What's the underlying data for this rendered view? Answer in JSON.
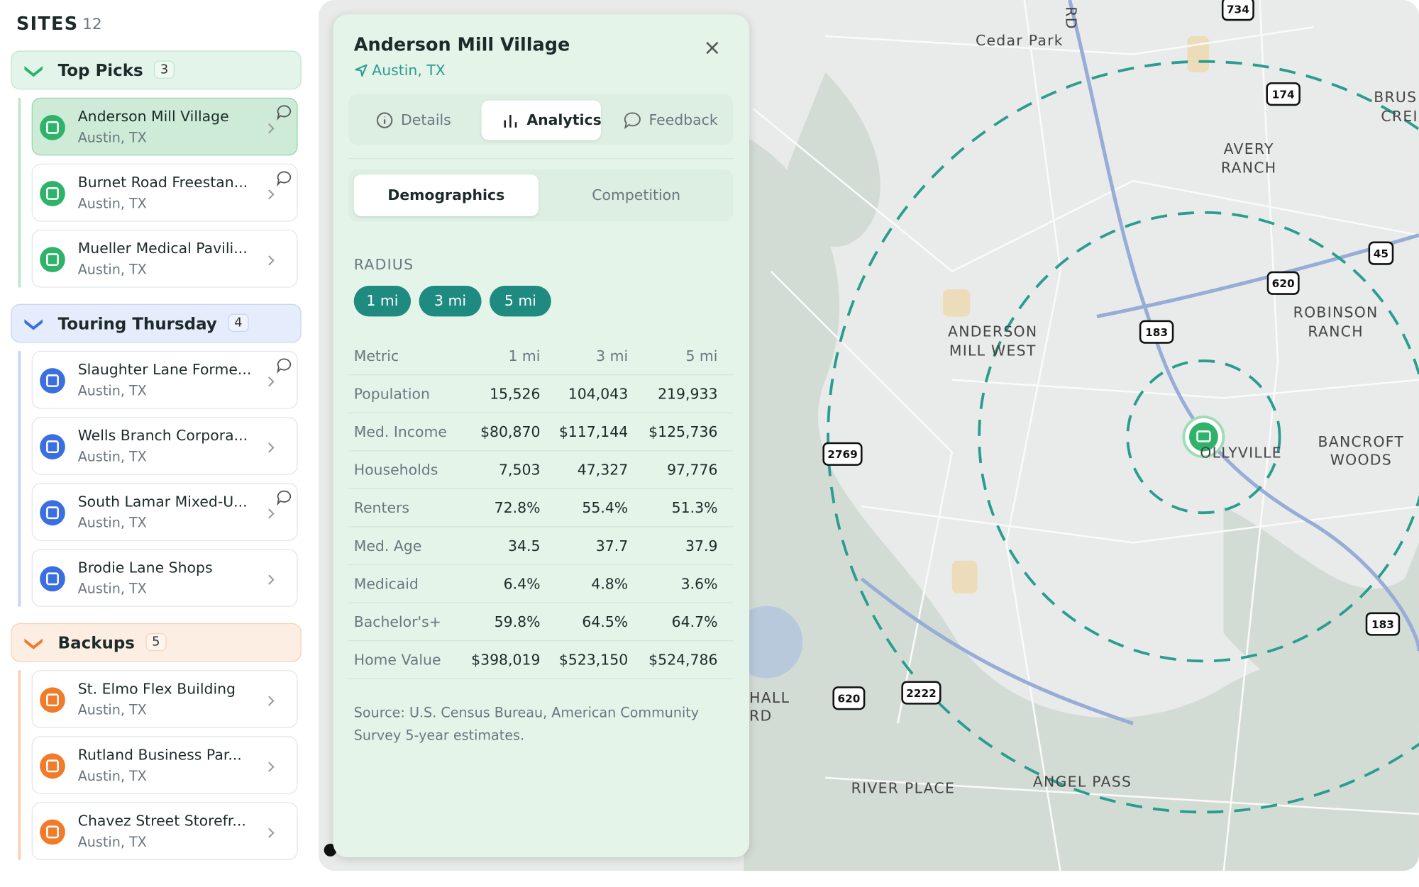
{
  "sidebar": {
    "title": "SITES",
    "count": "12",
    "groups": [
      {
        "name": "Top Picks",
        "count": "3",
        "color": "#2fb36a",
        "bg": "#e3f5ea",
        "border": "#bfe6cd",
        "sites": [
          {
            "name": "Anderson Mill Village",
            "location": "Austin, TX",
            "selected": true,
            "comment": true
          },
          {
            "name": "Burnet Road Freestan...",
            "location": "Austin, TX",
            "comment": true
          },
          {
            "name": "Mueller Medical Pavili...",
            "location": "Austin, TX"
          }
        ]
      },
      {
        "name": "Touring Thursday",
        "count": "4",
        "color": "#3b6fe0",
        "bg": "#e5ecfb",
        "border": "#c7d5f5",
        "sites": [
          {
            "name": "Slaughter Lane Forme...",
            "location": "Austin, TX",
            "comment": true
          },
          {
            "name": "Wells Branch Corpora...",
            "location": "Austin, TX"
          },
          {
            "name": "South Lamar Mixed-U...",
            "location": "Austin, TX",
            "comment": true
          },
          {
            "name": "Brodie Lane Shops",
            "location": "Austin, TX"
          }
        ]
      },
      {
        "name": "Backups",
        "count": "5",
        "color": "#f07b2a",
        "bg": "#fdeee3",
        "border": "#f6d2b8",
        "sites": [
          {
            "name": "St. Elmo Flex Building",
            "location": "Austin, TX"
          },
          {
            "name": "Rutland Business Par...",
            "location": "Austin, TX"
          },
          {
            "name": "Chavez Street Storefr...",
            "location": "Austin, TX"
          }
        ]
      }
    ]
  },
  "panel": {
    "title": "Anderson Mill Village",
    "location": "Austin, TX",
    "tabs": [
      "Details",
      "Analytics",
      "Feedback"
    ],
    "active_tab": 1,
    "subtabs": [
      "Demographics",
      "Competition"
    ],
    "active_subtab": 0,
    "radius_label": "RADIUS",
    "radii": [
      "1 mi",
      "3 mi",
      "5 mi"
    ],
    "table": {
      "header": [
        "Metric",
        "1 mi",
        "3 mi",
        "5 mi"
      ],
      "rows": [
        [
          "Population",
          "15,526",
          "104,043",
          "219,933"
        ],
        [
          "Med. Income",
          "$80,870",
          "$117,144",
          "$125,736"
        ],
        [
          "Households",
          "7,503",
          "47,327",
          "97,776"
        ],
        [
          "Renters",
          "72.8%",
          "55.4%",
          "51.3%"
        ],
        [
          "Med. Age",
          "34.5",
          "37.7",
          "37.9"
        ],
        [
          "Medicaid",
          "6.4%",
          "4.8%",
          "3.6%"
        ],
        [
          "Bachelor's+",
          "59.8%",
          "64.5%",
          "64.7%"
        ],
        [
          "Home Value",
          "$398,019",
          "$523,150",
          "$524,786"
        ]
      ]
    },
    "source": "Source: U.S. Census Bureau, American Community Survey 5-year estimates."
  },
  "map": {
    "labels": [
      "Cedar Park",
      "AVERY",
      "RANCH",
      "BRUS",
      "CREI",
      "ROBINSON",
      "RANCH",
      "ANDERSON",
      "MILL WEST",
      "OLLYVILLE",
      "BANCROFT",
      "WOODS",
      "HALL",
      "RD",
      "RIVER PLACE",
      "ANGEL PASS",
      "RD"
    ],
    "shields": [
      "734",
      "174",
      "45",
      "620",
      "183",
      "2769",
      "620",
      "2222",
      "183"
    ]
  }
}
